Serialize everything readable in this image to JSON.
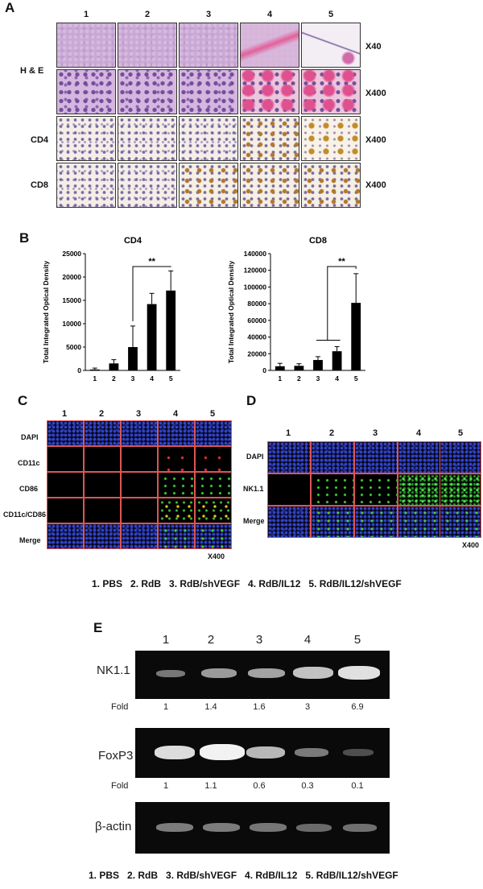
{
  "panel_A": {
    "label": "A",
    "columns": [
      "1",
      "2",
      "3",
      "4",
      "5"
    ],
    "rows": [
      {
        "label": "H & E",
        "magnification": "X40"
      },
      {
        "label": "",
        "magnification": "X400"
      },
      {
        "label": "CD4",
        "magnification": "X400"
      },
      {
        "label": "CD8",
        "magnification": "X400"
      }
    ]
  },
  "panel_B": {
    "label": "B",
    "significance": "**"
  },
  "chart_data": [
    {
      "type": "bar",
      "title": "CD4",
      "ylabel": "Total Integrated Optical Density",
      "categories": [
        "1",
        "2",
        "3",
        "4",
        "5"
      ],
      "values": [
        200,
        1500,
        5000,
        14200,
        17100
      ],
      "errors": [
        300,
        800,
        4500,
        2300,
        4200
      ],
      "ylim": [
        0,
        25000
      ],
      "yticks": [
        "0",
        "5000",
        "10000",
        "15000",
        "20000",
        "25000"
      ],
      "significance": {
        "between": [
          "3",
          "5"
        ],
        "label": "**"
      }
    },
    {
      "type": "bar",
      "title": "CD8",
      "ylabel": "Total Integrated Optical Density",
      "categories": [
        "1",
        "2",
        "3",
        "4",
        "5"
      ],
      "values": [
        5000,
        5500,
        12500,
        23000,
        81000
      ],
      "errors": [
        3500,
        2500,
        4000,
        5500,
        35000
      ],
      "ylim": [
        0,
        140000
      ],
      "yticks": [
        "0",
        "20000",
        "40000",
        "60000",
        "80000",
        "100000",
        "120000",
        "140000"
      ],
      "significance": {
        "between": [
          "3-4",
          "5"
        ],
        "label": "**"
      }
    }
  ],
  "panel_C": {
    "label": "C",
    "columns": [
      "1",
      "2",
      "3",
      "4",
      "5"
    ],
    "rows": [
      "DAPI",
      "CD11c",
      "CD86",
      "CD11c/CD86",
      "Merge"
    ],
    "magnification": "X400"
  },
  "panel_D": {
    "label": "D",
    "columns": [
      "1",
      "2",
      "3",
      "4",
      "5"
    ],
    "rows": [
      "DAPI",
      "NK1.1",
      "Merge"
    ],
    "magnification": "X400"
  },
  "legend_1": "1. PBS   2. RdB   3. RdB/shVEGF   4. RdB/IL12   5. RdB/IL12/shVEGF",
  "panel_E": {
    "label": "E",
    "lanes": [
      "1",
      "2",
      "3",
      "4",
      "5"
    ],
    "gels": [
      {
        "name": "NK1.1",
        "fold_label": "Fold",
        "folds": [
          "1",
          "1.4",
          "1.6",
          "3",
          "6.9"
        ]
      },
      {
        "name": "FoxP3",
        "fold_label": "Fold",
        "folds": [
          "1",
          "1.1",
          "0.6",
          "0.3",
          "0.1"
        ]
      },
      {
        "name": "β-actin"
      }
    ]
  },
  "legend_2": "1. PBS   2. RdB   3. RdB/shVEGF   4. RdB/IL12   5. RdB/IL12/shVEGF"
}
